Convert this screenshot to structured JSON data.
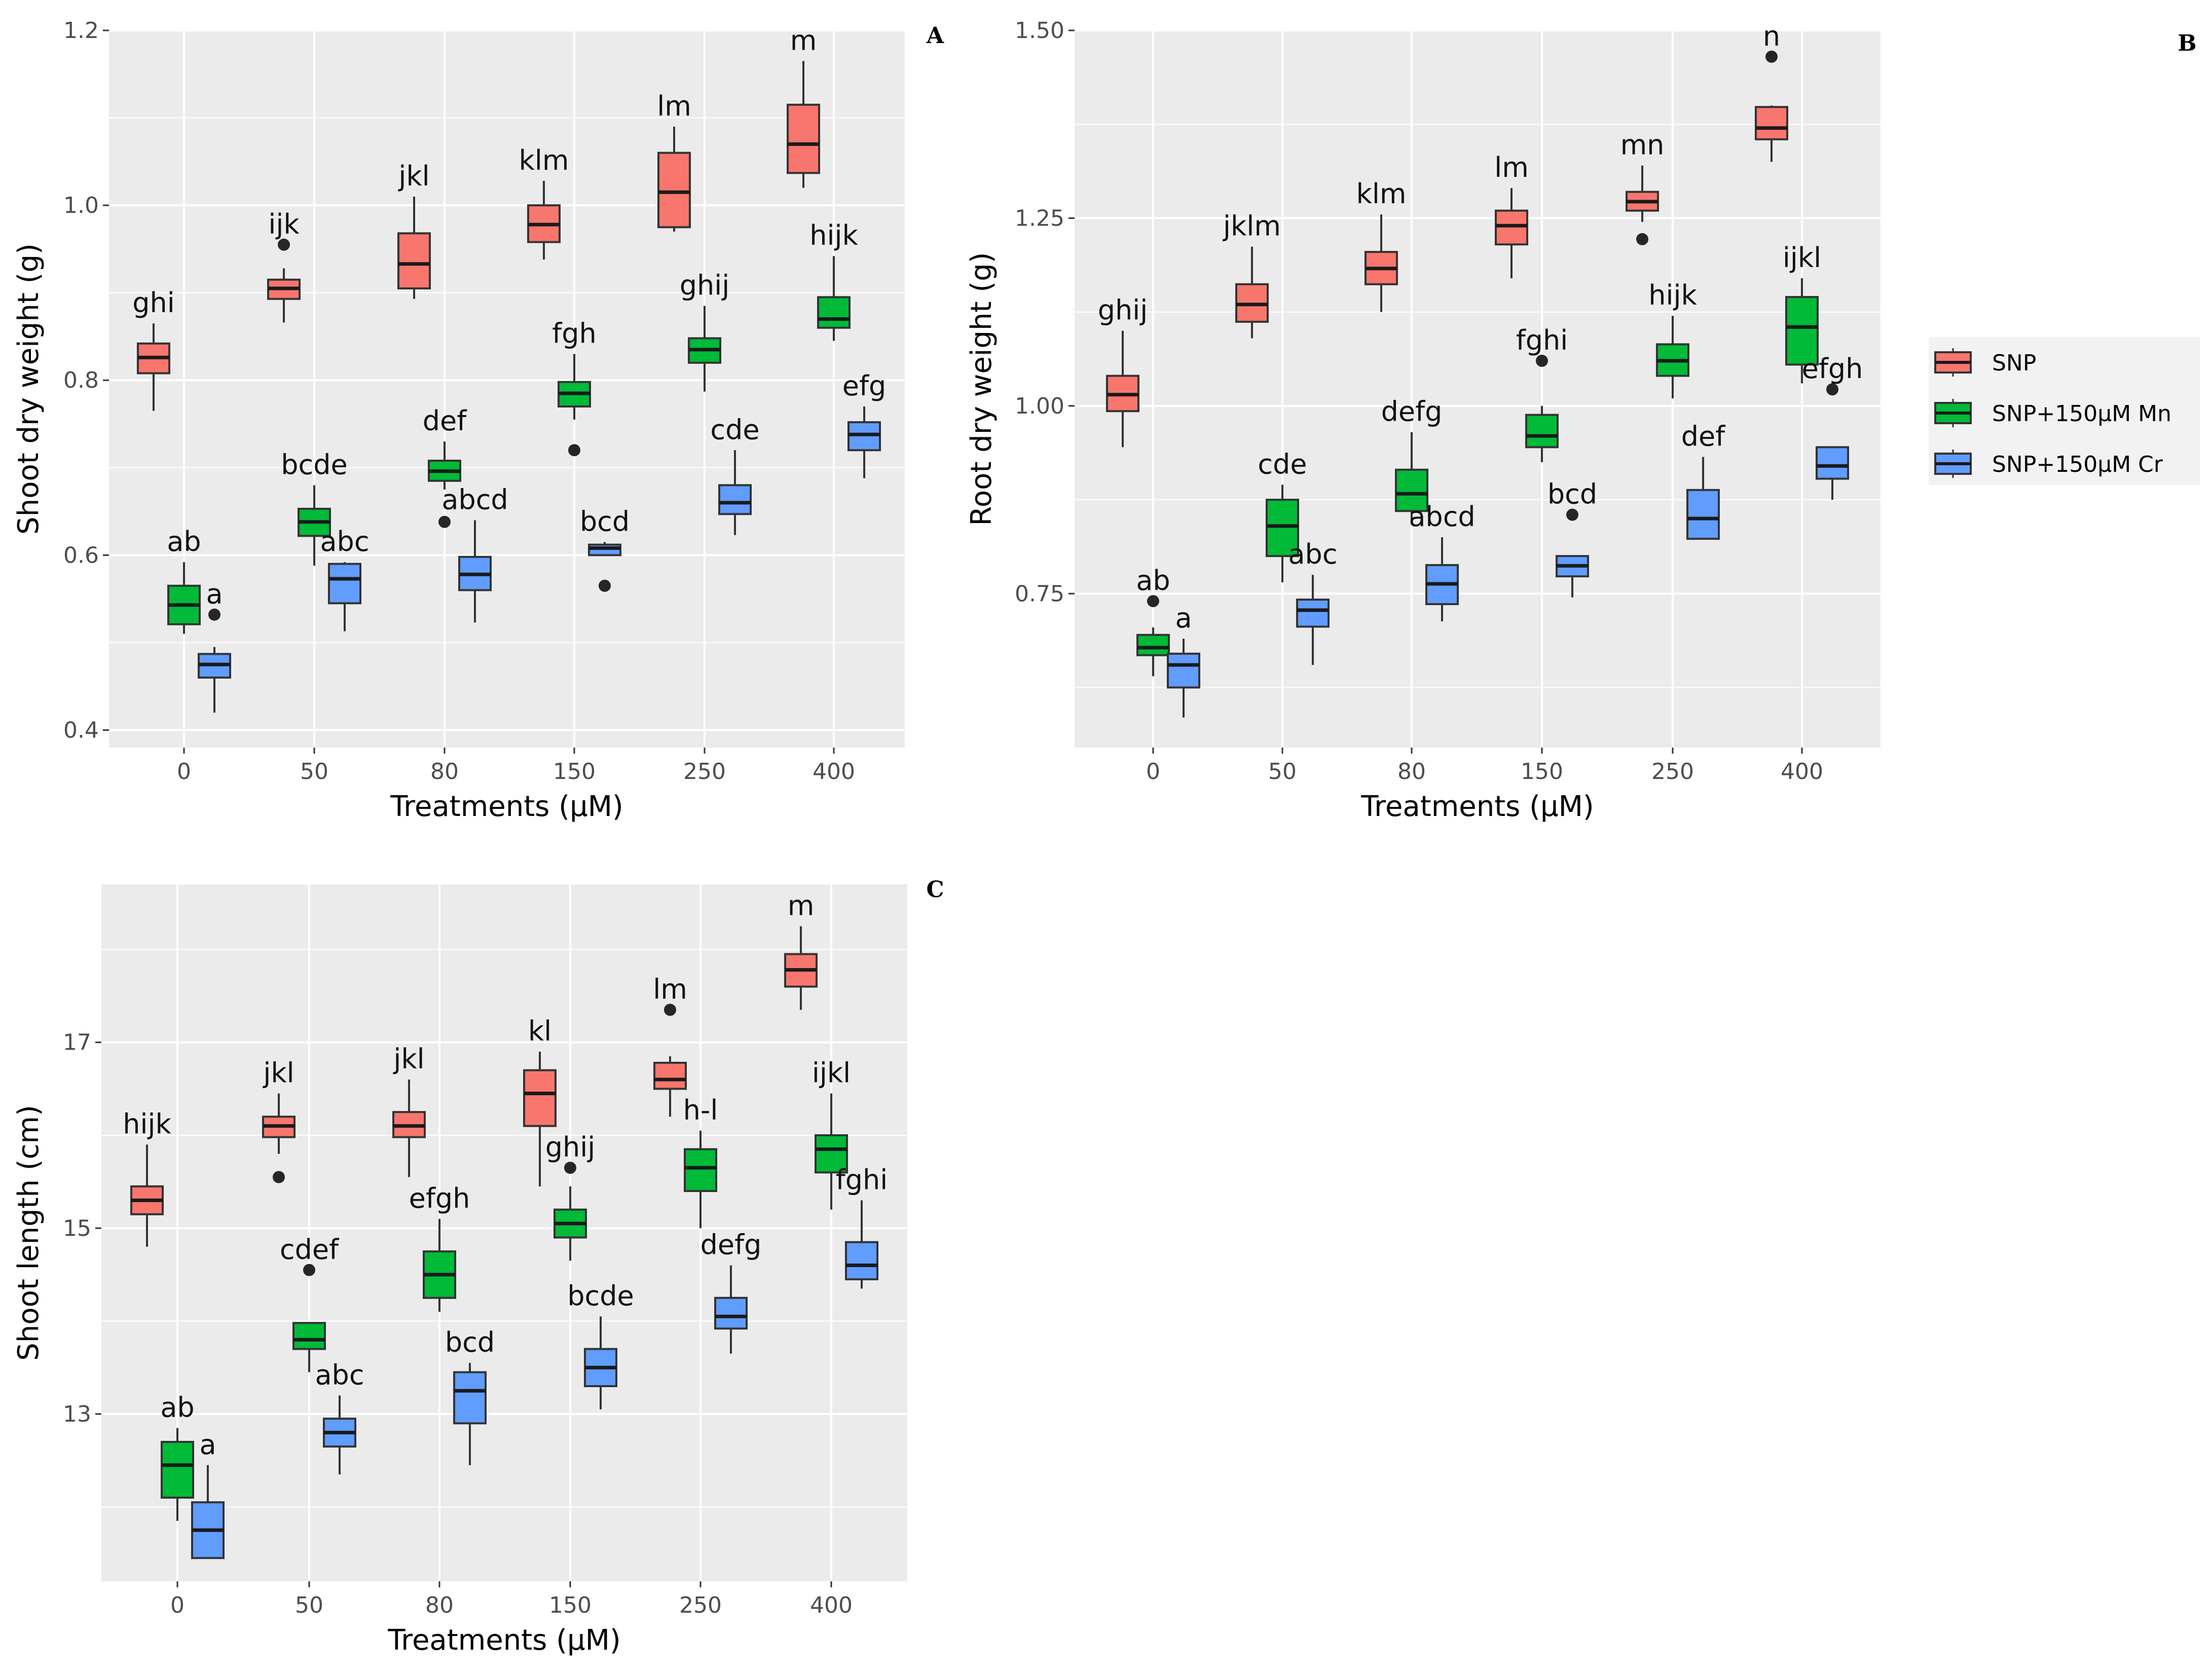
{
  "figure": {
    "legend": {
      "items": [
        {
          "label": "SNP",
          "color": "#F8766D"
        },
        {
          "label": "SNP+150μM Mn",
          "color": "#00BA38"
        },
        {
          "label": "SNP+150μM Cr",
          "color": "#619CFF"
        }
      ]
    }
  },
  "chart_data": [
    {
      "type": "boxplot",
      "panel": "A",
      "xlabel": "Treatments (μM)",
      "ylabel": "Shoot dry weight (g)",
      "categories": [
        "0",
        "50",
        "80",
        "150",
        "250",
        "400"
      ],
      "ylim": [
        0.38,
        1.2
      ],
      "yticks": [
        0.4,
        0.6,
        0.8,
        1.0,
        1.2
      ],
      "ytick_labels": [
        "0.4",
        "0.6",
        "0.8",
        "1.0",
        "1.2"
      ],
      "series": [
        {
          "name": "SNP",
          "color": "#F8766D",
          "boxes": [
            {
              "q1": 0.808,
              "median": 0.826,
              "q3": 0.842,
              "low": 0.765,
              "high": 0.865,
              "outliers": [],
              "label": "ghi"
            },
            {
              "q1": 0.893,
              "median": 0.905,
              "q3": 0.915,
              "low": 0.866,
              "high": 0.928,
              "outliers": [
                0.955
              ],
              "label": "ijk"
            },
            {
              "q1": 0.905,
              "median": 0.933,
              "q3": 0.968,
              "low": 0.893,
              "high": 1.01,
              "outliers": [],
              "label": "jkl"
            },
            {
              "q1": 0.958,
              "median": 0.978,
              "q3": 1.0,
              "low": 0.938,
              "high": 1.028,
              "outliers": [],
              "label": "klm"
            },
            {
              "q1": 0.975,
              "median": 1.015,
              "q3": 1.06,
              "low": 0.97,
              "high": 1.09,
              "outliers": [],
              "label": "lm"
            },
            {
              "q1": 1.037,
              "median": 1.07,
              "q3": 1.115,
              "low": 1.02,
              "high": 1.165,
              "outliers": [],
              "label": "m"
            }
          ]
        },
        {
          "name": "SNP+150μM Mn",
          "color": "#00BA38",
          "boxes": [
            {
              "q1": 0.521,
              "median": 0.543,
              "q3": 0.565,
              "low": 0.51,
              "high": 0.592,
              "outliers": [],
              "label": "ab"
            },
            {
              "q1": 0.622,
              "median": 0.638,
              "q3": 0.653,
              "low": 0.588,
              "high": 0.68,
              "outliers": [],
              "label": "bcde"
            },
            {
              "q1": 0.685,
              "median": 0.696,
              "q3": 0.708,
              "low": 0.675,
              "high": 0.73,
              "outliers": [
                0.638
              ],
              "label": "def"
            },
            {
              "q1": 0.77,
              "median": 0.785,
              "q3": 0.798,
              "low": 0.755,
              "high": 0.83,
              "outliers": [
                0.72
              ],
              "label": "fgh"
            },
            {
              "q1": 0.82,
              "median": 0.835,
              "q3": 0.848,
              "low": 0.787,
              "high": 0.885,
              "outliers": [],
              "label": "ghij"
            },
            {
              "q1": 0.86,
              "median": 0.87,
              "q3": 0.895,
              "low": 0.845,
              "high": 0.942,
              "outliers": [],
              "label": "hijk"
            }
          ]
        },
        {
          "name": "SNP+150μM Cr",
          "color": "#619CFF",
          "boxes": [
            {
              "q1": 0.46,
              "median": 0.475,
              "q3": 0.487,
              "low": 0.42,
              "high": 0.495,
              "outliers": [
                0.532
              ],
              "label": "a"
            },
            {
              "q1": 0.545,
              "median": 0.573,
              "q3": 0.59,
              "low": 0.513,
              "high": 0.592,
              "outliers": [],
              "label": "abc"
            },
            {
              "q1": 0.56,
              "median": 0.578,
              "q3": 0.598,
              "low": 0.523,
              "high": 0.64,
              "outliers": [],
              "label": "abcd"
            },
            {
              "q1": 0.6,
              "median": 0.608,
              "q3": 0.612,
              "low": 0.6,
              "high": 0.615,
              "outliers": [
                0.565
              ],
              "label": "bcd"
            },
            {
              "q1": 0.647,
              "median": 0.66,
              "q3": 0.68,
              "low": 0.623,
              "high": 0.72,
              "outliers": [],
              "label": "cde"
            },
            {
              "q1": 0.72,
              "median": 0.738,
              "q3": 0.752,
              "low": 0.688,
              "high": 0.77,
              "outliers": [],
              "label": "efg"
            }
          ]
        }
      ]
    },
    {
      "type": "boxplot",
      "panel": "B",
      "xlabel": "Treatments (μM)",
      "ylabel": "Root dry weight (g)",
      "categories": [
        "0",
        "50",
        "80",
        "150",
        "250",
        "400"
      ],
      "ylim": [
        0.545,
        1.5
      ],
      "yticks": [
        0.75,
        1.0,
        1.25,
        1.5
      ],
      "ytick_labels": [
        "0.75",
        "1.00",
        "1.25",
        "1.50"
      ],
      "series": [
        {
          "name": "SNP",
          "color": "#F8766D",
          "boxes": [
            {
              "q1": 0.993,
              "median": 1.015,
              "q3": 1.04,
              "low": 0.945,
              "high": 1.1,
              "outliers": [],
              "label": "ghij"
            },
            {
              "q1": 1.112,
              "median": 1.135,
              "q3": 1.162,
              "low": 1.09,
              "high": 1.212,
              "outliers": [],
              "label": "jklm"
            },
            {
              "q1": 1.162,
              "median": 1.183,
              "q3": 1.205,
              "low": 1.125,
              "high": 1.255,
              "outliers": [],
              "label": "klm"
            },
            {
              "q1": 1.215,
              "median": 1.24,
              "q3": 1.26,
              "low": 1.17,
              "high": 1.29,
              "outliers": [],
              "label": "lm"
            },
            {
              "q1": 1.26,
              "median": 1.272,
              "q3": 1.285,
              "low": 1.245,
              "high": 1.32,
              "outliers": [
                1.222
              ],
              "label": "mn"
            },
            {
              "q1": 1.355,
              "median": 1.37,
              "q3": 1.398,
              "low": 1.325,
              "high": 1.4,
              "outliers": [
                1.465
              ],
              "label": "n"
            }
          ]
        },
        {
          "name": "SNP+150μM Mn",
          "color": "#00BA38",
          "boxes": [
            {
              "q1": 0.668,
              "median": 0.678,
              "q3": 0.695,
              "low": 0.64,
              "high": 0.705,
              "outliers": [
                0.74
              ],
              "label": "ab"
            },
            {
              "q1": 0.8,
              "median": 0.84,
              "q3": 0.875,
              "low": 0.765,
              "high": 0.895,
              "outliers": [],
              "label": "cde"
            },
            {
              "q1": 0.86,
              "median": 0.883,
              "q3": 0.915,
              "low": 0.848,
              "high": 0.965,
              "outliers": [],
              "label": "defg"
            },
            {
              "q1": 0.945,
              "median": 0.96,
              "q3": 0.988,
              "low": 0.925,
              "high": 1.0,
              "outliers": [
                1.06
              ],
              "label": "fghi"
            },
            {
              "q1": 1.04,
              "median": 1.06,
              "q3": 1.082,
              "low": 1.01,
              "high": 1.12,
              "outliers": [],
              "label": "hijk"
            },
            {
              "q1": 1.055,
              "median": 1.105,
              "q3": 1.145,
              "low": 1.03,
              "high": 1.17,
              "outliers": [],
              "label": "ijkl"
            }
          ]
        },
        {
          "name": "SNP+150μM Cr",
          "color": "#619CFF",
          "boxes": [
            {
              "q1": 0.625,
              "median": 0.655,
              "q3": 0.67,
              "low": 0.585,
              "high": 0.69,
              "outliers": [],
              "label": "a"
            },
            {
              "q1": 0.706,
              "median": 0.728,
              "q3": 0.742,
              "low": 0.655,
              "high": 0.775,
              "outliers": [],
              "label": "abc"
            },
            {
              "q1": 0.736,
              "median": 0.763,
              "q3": 0.788,
              "low": 0.713,
              "high": 0.825,
              "outliers": [],
              "label": "abcd"
            },
            {
              "q1": 0.773,
              "median": 0.787,
              "q3": 0.8,
              "low": 0.745,
              "high": 0.8,
              "outliers": [
                0.855
              ],
              "label": "bcd"
            },
            {
              "q1": 0.823,
              "median": 0.85,
              "q3": 0.888,
              "low": 0.823,
              "high": 0.932,
              "outliers": [],
              "label": "def"
            },
            {
              "q1": 0.903,
              "median": 0.92,
              "q3": 0.945,
              "low": 0.875,
              "high": 0.945,
              "outliers": [
                1.022
              ],
              "label": "efgh"
            }
          ]
        }
      ]
    },
    {
      "type": "boxplot",
      "panel": "C",
      "xlabel": "Treatments (μM)",
      "ylabel": "Shoot length (cm)",
      "categories": [
        "0",
        "50",
        "80",
        "150",
        "250",
        "400"
      ],
      "ylim": [
        11.2,
        18.7
      ],
      "yticks": [
        13,
        15,
        17
      ],
      "ytick_labels": [
        "13",
        "15",
        "17"
      ],
      "series": [
        {
          "name": "SNP",
          "color": "#F8766D",
          "boxes": [
            {
              "q1": 15.15,
              "median": 15.3,
              "q3": 15.45,
              "low": 14.8,
              "high": 15.9,
              "outliers": [],
              "label": "hijk"
            },
            {
              "q1": 15.98,
              "median": 16.1,
              "q3": 16.2,
              "low": 15.8,
              "high": 16.45,
              "outliers": [
                15.55
              ],
              "label": "jkl"
            },
            {
              "q1": 15.98,
              "median": 16.1,
              "q3": 16.25,
              "low": 15.55,
              "high": 16.6,
              "outliers": [],
              "label": "jkl"
            },
            {
              "q1": 16.1,
              "median": 16.45,
              "q3": 16.7,
              "low": 15.45,
              "high": 16.9,
              "outliers": [],
              "label": "kl"
            },
            {
              "q1": 16.5,
              "median": 16.6,
              "q3": 16.78,
              "low": 16.2,
              "high": 16.85,
              "outliers": [
                17.35
              ],
              "label": "lm"
            },
            {
              "q1": 17.6,
              "median": 17.78,
              "q3": 17.95,
              "low": 17.35,
              "high": 18.25,
              "outliers": [],
              "label": "m"
            }
          ]
        },
        {
          "name": "SNP+150μM Mn",
          "color": "#00BA38",
          "boxes": [
            {
              "q1": 12.1,
              "median": 12.45,
              "q3": 12.7,
              "low": 11.85,
              "high": 12.85,
              "outliers": [],
              "label": "ab"
            },
            {
              "q1": 13.7,
              "median": 13.8,
              "q3": 13.98,
              "low": 13.45,
              "high": 13.98,
              "outliers": [
                14.55
              ],
              "label": "cdef"
            },
            {
              "q1": 14.25,
              "median": 14.5,
              "q3": 14.75,
              "low": 14.1,
              "high": 15.1,
              "outliers": [],
              "label": "efgh"
            },
            {
              "q1": 14.9,
              "median": 15.05,
              "q3": 15.2,
              "low": 14.65,
              "high": 15.45,
              "outliers": [
                15.65
              ],
              "label": "ghij"
            },
            {
              "q1": 15.4,
              "median": 15.65,
              "q3": 15.85,
              "low": 15.0,
              "high": 16.05,
              "outliers": [],
              "label": "h-l"
            },
            {
              "q1": 15.6,
              "median": 15.85,
              "q3": 16.0,
              "low": 15.2,
              "high": 16.45,
              "outliers": [],
              "label": "ijkl"
            }
          ]
        },
        {
          "name": "SNP+150μM Cr",
          "color": "#619CFF",
          "boxes": [
            {
              "q1": 11.45,
              "median": 11.75,
              "q3": 12.05,
              "low": 11.45,
              "high": 12.45,
              "outliers": [],
              "label": "a"
            },
            {
              "q1": 12.65,
              "median": 12.8,
              "q3": 12.95,
              "low": 12.35,
              "high": 13.2,
              "outliers": [],
              "label": "abc"
            },
            {
              "q1": 12.9,
              "median": 13.25,
              "q3": 13.45,
              "low": 12.45,
              "high": 13.55,
              "outliers": [],
              "label": "bcd"
            },
            {
              "q1": 13.3,
              "median": 13.5,
              "q3": 13.7,
              "low": 13.05,
              "high": 14.05,
              "outliers": [],
              "label": "bcde"
            },
            {
              "q1": 13.92,
              "median": 14.05,
              "q3": 14.25,
              "low": 13.65,
              "high": 14.6,
              "outliers": [],
              "label": "defg"
            },
            {
              "q1": 14.45,
              "median": 14.6,
              "q3": 14.85,
              "low": 14.35,
              "high": 15.3,
              "outliers": [],
              "label": "fghi"
            }
          ]
        }
      ]
    }
  ]
}
